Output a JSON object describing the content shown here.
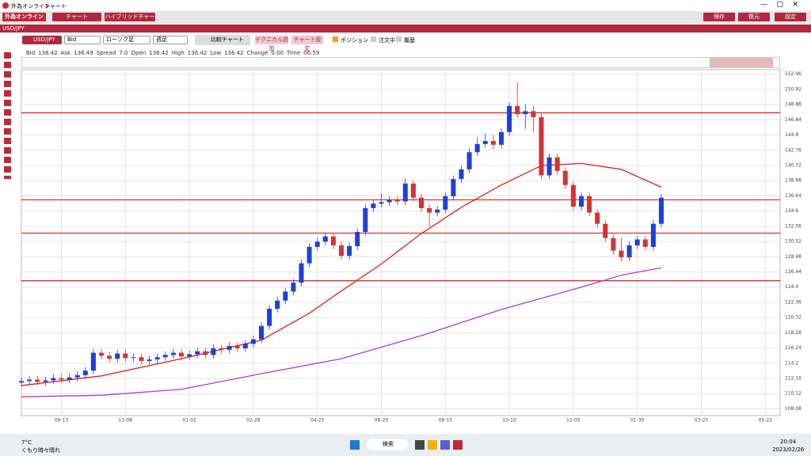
{
  "title_bar": {
    "app": "外為オンライン",
    "title": "チャート"
  },
  "menu": {
    "buttons": [
      "チャート",
      "ハイブリッドチャート"
    ],
    "right": [
      "保存",
      "復元",
      "設定"
    ]
  },
  "symbol": "USD/JPY",
  "toolbar": {
    "pair": "USD/JPY",
    "price": "Bid",
    "chart_type": "ローソク足",
    "period": "週足",
    "compare": "比較チャート",
    "add_technical": "テクニカル追加",
    "chart_settings": "チャート設定",
    "checks": [
      "ポジション",
      "注文中",
      "履歴"
    ]
  },
  "quote": [
    {
      "label": "Bid",
      "value": 136.42
    },
    {
      "label": "Ask",
      "value": 136.49
    },
    {
      "label": "Spread",
      "value": "7.0"
    },
    {
      "label": "Open",
      "value": 136.42
    },
    {
      "label": "High",
      "value": 136.42
    },
    {
      "label": "Low",
      "value": 136.42
    },
    {
      "label": "Change",
      "value": "0.00"
    },
    {
      "label": "Time",
      "value": "06:59"
    }
  ],
  "chart": {
    "type": "candlestick",
    "up_color": "#1f3fd6",
    "down_color": "#d13434",
    "grid": true,
    "ylim": [
      107.17,
      153.57
    ],
    "yticks": [
      152.96,
      150.92,
      148.88,
      146.84,
      144.8,
      142.76,
      140.72,
      138.68,
      136.64,
      134.6,
      132.56,
      130.52,
      128.48,
      126.44,
      124.4,
      122.36,
      120.32,
      118.28,
      116.24,
      114.2,
      112.16,
      110.12,
      108.08
    ],
    "xticks": [
      {
        "value": 5,
        "label": "09-13"
      },
      {
        "value": 13,
        "label": "11-08"
      },
      {
        "value": 21,
        "label": "01-02"
      },
      {
        "value": 29,
        "label": "02-28"
      },
      {
        "value": 37,
        "label": "04-25"
      },
      {
        "value": 45,
        "label": "06-20"
      },
      {
        "value": 53,
        "label": "08-15"
      },
      {
        "value": 61,
        "label": "10-10"
      },
      {
        "value": 69,
        "label": "12-05"
      },
      {
        "value": 77,
        "label": "01-30"
      },
      {
        "value": 85,
        "label": "03-27"
      },
      {
        "value": 93,
        "label": "05-22"
      }
    ],
    "open": [
      111.6,
      111.8,
      112.0,
      111.7,
      111.9,
      112.2,
      112.0,
      112.3,
      112.6,
      113.2,
      115.6,
      115.2,
      114.8,
      115.5,
      114.9,
      115.0,
      114.5,
      114.7,
      115.0,
      115.3,
      115.6,
      115.1,
      115.4,
      115.8,
      115.3,
      116.2,
      116.0,
      116.5,
      116.2,
      116.8,
      117.4,
      119.2,
      121.5,
      122.6,
      123.8,
      125.0,
      127.6,
      129.8,
      130.5,
      131.2,
      130.0,
      128.6,
      129.9,
      131.8,
      135.0,
      135.6,
      135.8,
      136.1,
      135.9,
      138.3,
      136.4,
      135.0,
      134.4,
      134.8,
      136.6,
      138.9,
      140.2,
      142.5,
      143.6,
      144.0,
      143.5,
      145.2,
      148.7,
      147.6,
      148.0,
      147.2,
      139.4,
      141.8,
      140.0,
      138.1,
      135.2,
      136.6,
      134.4,
      132.9,
      131.0,
      129.3,
      128.4,
      130.0,
      130.8,
      129.8,
      132.9
    ],
    "high": [
      112.3,
      112.5,
      112.5,
      112.4,
      112.7,
      112.7,
      112.8,
      113.1,
      113.7,
      116.1,
      116.1,
      115.7,
      116.0,
      116.0,
      115.5,
      115.5,
      115.2,
      115.5,
      115.8,
      116.1,
      116.1,
      115.9,
      116.3,
      116.3,
      116.7,
      116.7,
      117.0,
      117.0,
      117.3,
      117.9,
      119.7,
      122.0,
      123.1,
      124.3,
      125.5,
      128.1,
      130.3,
      131.0,
      131.7,
      131.7,
      130.5,
      130.4,
      132.3,
      135.5,
      136.1,
      137.0,
      136.6,
      136.6,
      139.0,
      138.8,
      136.9,
      135.5,
      135.3,
      137.1,
      139.4,
      140.7,
      143.0,
      144.5,
      145.0,
      144.8,
      145.7,
      149.2,
      151.9,
      149.0,
      148.7,
      147.7,
      142.3,
      142.3,
      140.5,
      138.6,
      137.1,
      137.1,
      134.9,
      133.4,
      131.5,
      131.0,
      130.5,
      131.3,
      131.3,
      133.4,
      136.9
    ],
    "low": [
      111.1,
      111.3,
      111.2,
      111.2,
      111.4,
      111.5,
      111.5,
      111.8,
      112.1,
      112.7,
      114.7,
      114.3,
      114.3,
      114.4,
      114.4,
      114.0,
      114.0,
      114.2,
      114.5,
      114.8,
      114.6,
      114.6,
      114.9,
      114.8,
      114.8,
      115.5,
      115.5,
      115.7,
      115.7,
      116.3,
      116.9,
      118.7,
      121.0,
      122.1,
      123.3,
      124.5,
      127.1,
      129.3,
      130.0,
      129.5,
      128.1,
      128.1,
      129.4,
      131.3,
      134.5,
      135.1,
      135.3,
      135.4,
      135.4,
      135.9,
      134.5,
      132.5,
      133.9,
      134.3,
      136.1,
      138.4,
      139.7,
      142.0,
      143.1,
      142.9,
      143.0,
      144.7,
      147.1,
      145.6,
      145.2,
      138.9,
      138.9,
      139.5,
      137.6,
      134.7,
      134.7,
      133.9,
      132.4,
      130.5,
      128.8,
      127.9,
      127.9,
      129.5,
      129.3,
      129.3,
      132.4
    ],
    "close": [
      111.8,
      112.0,
      111.7,
      111.9,
      112.2,
      112.0,
      112.3,
      112.6,
      113.2,
      115.6,
      115.2,
      114.8,
      115.5,
      114.9,
      115.0,
      114.5,
      114.7,
      115.0,
      115.3,
      115.6,
      115.1,
      115.4,
      115.8,
      115.3,
      116.2,
      116.0,
      116.5,
      116.2,
      116.8,
      117.4,
      119.2,
      121.5,
      122.6,
      123.8,
      125.0,
      127.6,
      129.8,
      130.5,
      131.2,
      130.0,
      128.6,
      129.9,
      131.8,
      135.0,
      135.6,
      135.8,
      136.1,
      135.9,
      138.3,
      136.4,
      135.0,
      134.4,
      134.8,
      136.6,
      138.9,
      140.2,
      142.5,
      143.6,
      144.0,
      143.5,
      145.2,
      148.7,
      147.6,
      148.0,
      147.2,
      139.4,
      141.8,
      140.0,
      138.1,
      135.2,
      136.6,
      134.4,
      132.9,
      131.0,
      129.3,
      128.4,
      130.0,
      130.8,
      129.8,
      132.9,
      136.4
    ],
    "series": [
      {
        "color": "#e0201c",
        "x": [
          0,
          10,
          20,
          30,
          36,
          40,
          45,
          50,
          55,
          60,
          65,
          70,
          75,
          80
        ],
        "values": [
          111.2,
          112.5,
          114.8,
          117.3,
          120.9,
          123.9,
          127.5,
          131.6,
          135.1,
          138.1,
          140.7,
          141.0,
          140.2,
          137.8
        ]
      },
      {
        "color": "#a63fd0",
        "x": [
          0,
          10,
          20,
          30,
          40,
          50,
          60,
          70,
          75,
          80
        ],
        "values": [
          109.7,
          109.9,
          110.7,
          112.8,
          114.8,
          117.9,
          121.4,
          124.4,
          126.0,
          127.0
        ]
      }
    ],
    "hlines": {
      "color": "#e0201c",
      "values": [
        147.78,
        136.11,
        131.65,
        125.26
      ]
    }
  },
  "taskbar": {
    "temp": "7°C",
    "weather": "くもり時々晴れ",
    "search": "検索",
    "time": "20:04",
    "date": "2023/02/26"
  }
}
